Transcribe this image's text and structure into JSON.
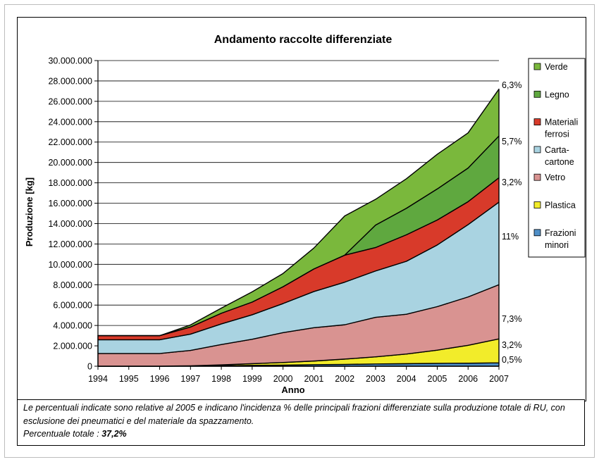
{
  "chart_data": {
    "type": "area",
    "stacked": true,
    "title": "Andamento raccolte differenziate",
    "xlabel": "Anno",
    "ylabel": "Produzione [kg]",
    "ylim": [
      0,
      30000000
    ],
    "y_ticks": [
      "0",
      "2.000.000",
      "4.000.000",
      "6.000.000",
      "8.000.000",
      "10.000.000",
      "12.000.000",
      "14.000.000",
      "16.000.000",
      "18.000.000",
      "20.000.000",
      "22.000.000",
      "24.000.000",
      "26.000.000",
      "28.000.000",
      "30.000.000"
    ],
    "x": [
      "1994",
      "1995",
      "1996",
      "1997",
      "1998",
      "1999",
      "2000",
      "2001",
      "2002",
      "2003",
      "2004",
      "2005",
      "2006",
      "2007"
    ],
    "grid": "horizontal",
    "legend_position": "right",
    "series": [
      {
        "name": "Frazioni minori",
        "color": "#4f8fc7",
        "values": [
          0,
          0,
          0,
          20000,
          50000,
          80000,
          110000,
          150000,
          180000,
          220000,
          250000,
          280000,
          300000,
          330000
        ]
      },
      {
        "name": "Plastica",
        "color": "#f2ec2a",
        "values": [
          0,
          0,
          0,
          20000,
          80000,
          170000,
          260000,
          360000,
          520000,
          700000,
          950000,
          1300000,
          1750000,
          2350000
        ]
      },
      {
        "name": "Vetro",
        "color": "#d99391",
        "values": [
          1250000,
          1250000,
          1250000,
          1510000,
          2000000,
          2400000,
          2930000,
          3270000,
          3370000,
          3880000,
          3900000,
          4270000,
          4750000,
          5320000
        ]
      },
      {
        "name": "Carta-cartone",
        "color": "#a9d3e1",
        "values": [
          1350000,
          1350000,
          1350000,
          1600000,
          2020000,
          2400000,
          2850000,
          3550000,
          4180000,
          4550000,
          5200000,
          6050000,
          7100000,
          8100000
        ]
      },
      {
        "name": "Materiali ferrosi",
        "color": "#d83a2a",
        "values": [
          400000,
          400000,
          400000,
          700000,
          1050000,
          1250000,
          1650000,
          2220000,
          2650000,
          2300000,
          2600000,
          2450000,
          2250000,
          2400000
        ]
      },
      {
        "name": "Legno",
        "color": "#5fa83f",
        "values": [
          0,
          0,
          0,
          0,
          0,
          0,
          0,
          0,
          0,
          2200000,
          2600000,
          3050000,
          3300000,
          4100000
        ]
      },
      {
        "name": "Verde",
        "color": "#7ab83c",
        "values": [
          0,
          0,
          0,
          200000,
          500000,
          1000000,
          1300000,
          2050000,
          3850000,
          2530000,
          2900000,
          3400000,
          3450000,
          4600000
        ]
      }
    ],
    "annotations": [
      "6,3%",
      "5,7%",
      "3,2%",
      "11%",
      "7,3%",
      "3,2%",
      "0,5%"
    ]
  },
  "note": {
    "text": "Le percentuali indicate sono relative al 2005 e indicano l'incidenza % delle principali frazioni differenziate sulla produzione totale di RU, con esclusione dei pneumatici e del materiale da spazzamento.",
    "total_label": "Percentuale totale :",
    "total_value": "37,2%"
  }
}
